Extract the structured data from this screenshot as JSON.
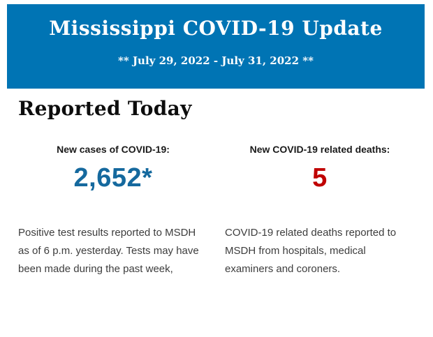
{
  "header": {
    "title": "Mississippi COVID-19 Update",
    "date_range": "** July 29, 2022 - July 31, 2022 **",
    "background_color": "#0074B4",
    "text_color": "#FFFFFF"
  },
  "section_title": "Reported Today",
  "stats": {
    "cases": {
      "label": "New cases of COVID-19:",
      "value": "2,652*",
      "value_color": "#15699E",
      "description": "Positive test results reported to MSDH as of 6 p.m. yesterday. Tests may have been made during the past week,"
    },
    "deaths": {
      "label": "New COVID-19 related deaths:",
      "value": "5",
      "value_color": "#C00000",
      "description": "COVID-19 related deaths reported to MSDH from hospitals, medical examiners and coroners."
    }
  }
}
